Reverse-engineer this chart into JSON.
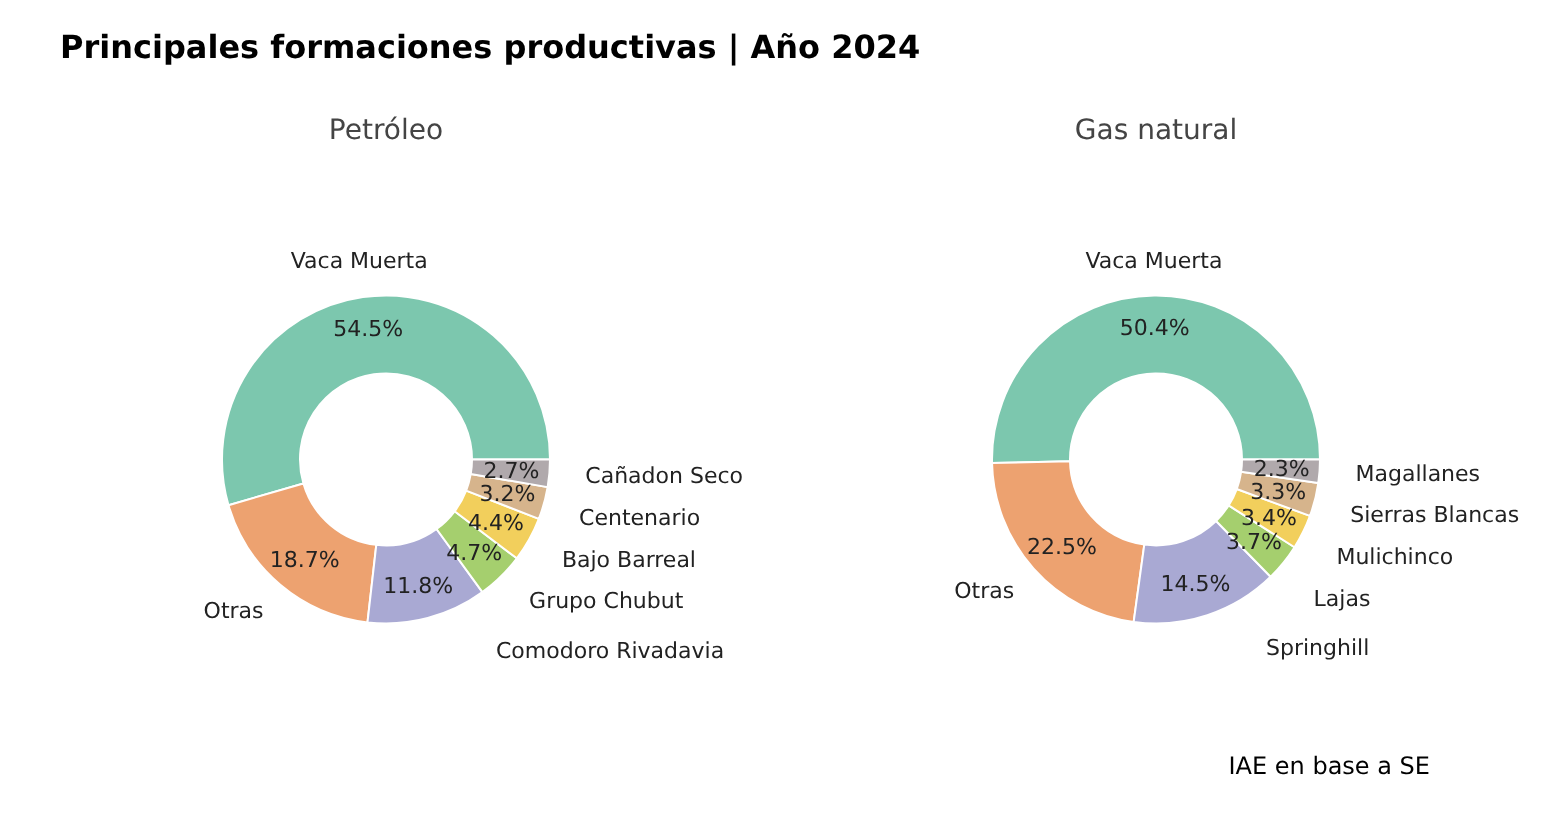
{
  "chart_data": [
    {
      "type": "donut",
      "title": "Petróleo",
      "annotations": [
        "Principales formaciones productivas | Año 2024"
      ],
      "categories": [
        "Vaca Muerta",
        "Otras",
        "Comodoro Rivadavia",
        "Grupo Chubut",
        "Bajo Barreal",
        "Centenario",
        "Cañadon Seco"
      ],
      "values": [
        54.5,
        18.7,
        11.8,
        4.7,
        4.4,
        3.2,
        2.7
      ],
      "value_labels": [
        "54.5%",
        "18.7%",
        "11.8%",
        "4.7%",
        "4.4%",
        "3.2%",
        "2.7%"
      ],
      "colors": [
        "#7cc7ae",
        "#eda270",
        "#a9a9d3",
        "#a5cf6e",
        "#f2cf5c",
        "#d6b48c",
        "#b0a9ac"
      ]
    },
    {
      "type": "donut",
      "title": "Gas natural",
      "annotations": [
        "IAE en base a SE"
      ],
      "categories": [
        "Vaca Muerta",
        "Otras",
        "Springhill",
        "Lajas",
        "Mulichinco",
        "Sierras Blancas",
        "Magallanes"
      ],
      "values": [
        50.4,
        22.5,
        14.5,
        3.7,
        3.4,
        3.3,
        2.3
      ],
      "value_labels": [
        "50.4%",
        "22.5%",
        "14.5%",
        "3.7%",
        "3.4%",
        "3.3%",
        "2.3%"
      ],
      "colors": [
        "#7cc7ae",
        "#eda270",
        "#a9a9d3",
        "#a5cf6e",
        "#f2cf5c",
        "#d6b48c",
        "#b0a9ac"
      ]
    }
  ]
}
